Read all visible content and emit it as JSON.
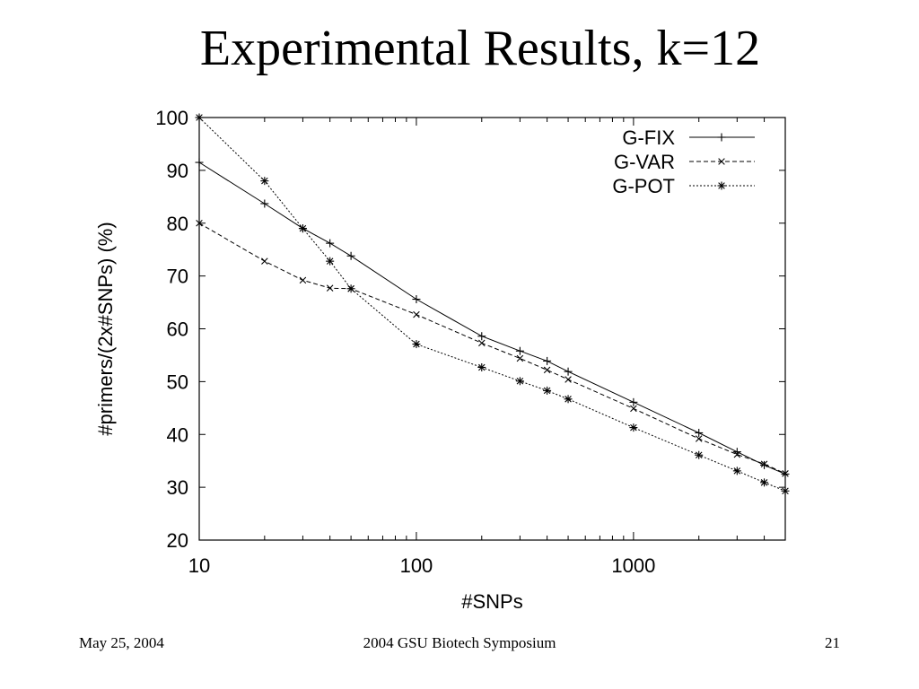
{
  "slide": {
    "title": "Experimental Results, k=12",
    "footer_date": "May 25, 2004",
    "footer_event": "2004 GSU Biotech Symposium",
    "footer_page": "21"
  },
  "chart_data": {
    "type": "line",
    "title": "",
    "xlabel": "#SNPs",
    "ylabel": "#primers/(2x#SNPs) (%)",
    "x_scale": "log",
    "xlim": [
      10,
      5000
    ],
    "ylim": [
      20,
      100
    ],
    "x_ticks": [
      10,
      100,
      1000
    ],
    "x_tick_labels": [
      "10",
      "100",
      "1000"
    ],
    "y_ticks": [
      20,
      30,
      40,
      50,
      60,
      70,
      80,
      90,
      100
    ],
    "y_tick_labels": [
      "20",
      "30",
      "40",
      "50",
      "60",
      "70",
      "80",
      "90",
      "100"
    ],
    "grid": false,
    "legend_position": "top-right",
    "series": [
      {
        "name": "G-FIX",
        "marker": "plus",
        "dash": "solid",
        "x": [
          10,
          20,
          30,
          40,
          50,
          100,
          200,
          300,
          400,
          500,
          1000,
          2000,
          3000,
          4000,
          5000
        ],
        "y": [
          91.5,
          83.7,
          79.0,
          76.2,
          73.8,
          65.6,
          58.6,
          55.8,
          53.9,
          51.9,
          46.1,
          40.3,
          36.7,
          34.2,
          32.5
        ]
      },
      {
        "name": "G-VAR",
        "marker": "x",
        "dash": "dashed",
        "x": [
          10,
          20,
          30,
          40,
          50,
          100,
          200,
          300,
          400,
          500,
          1000,
          2000,
          3000,
          4000,
          5000
        ],
        "y": [
          80.0,
          72.8,
          69.2,
          67.7,
          67.6,
          62.7,
          57.3,
          54.4,
          52.2,
          50.4,
          44.9,
          39.2,
          36.2,
          34.4,
          32.6
        ]
      },
      {
        "name": "G-POT",
        "marker": "star",
        "dash": "dotted",
        "x": [
          10,
          20,
          30,
          40,
          50,
          100,
          200,
          300,
          400,
          500,
          1000,
          2000,
          3000,
          4000,
          5000
        ],
        "y": [
          100.0,
          88.0,
          79.0,
          72.8,
          67.6,
          57.1,
          52.7,
          50.1,
          48.3,
          46.7,
          41.3,
          36.1,
          33.1,
          30.9,
          29.3
        ]
      }
    ]
  }
}
